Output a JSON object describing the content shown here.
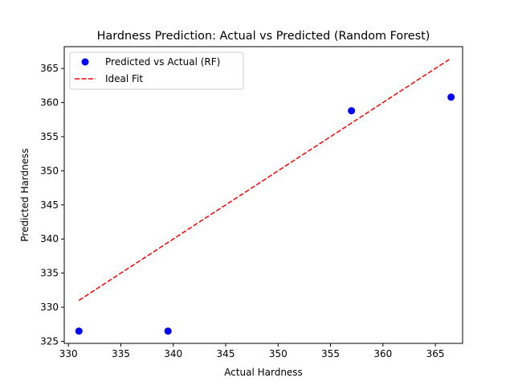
{
  "chart_data": {
    "type": "scatter",
    "title": "Hardness Prediction: Actual vs Predicted (Random Forest)",
    "xlabel": "Actual Hardness",
    "ylabel": "Predicted Hardness",
    "xlim": [
      329.6,
      367.6
    ],
    "ylim": [
      324.7,
      368.2
    ],
    "xticks": [
      330,
      335,
      340,
      345,
      350,
      355,
      360,
      365
    ],
    "yticks": [
      325,
      330,
      335,
      340,
      345,
      350,
      355,
      360,
      365
    ],
    "grid": false,
    "legend_position": "top-left",
    "series": [
      {
        "name": "Predicted vs Actual (RF)",
        "kind": "scatter",
        "color": "#0000ff",
        "points": [
          {
            "x": 331.0,
            "y": 326.5
          },
          {
            "x": 339.5,
            "y": 326.5
          },
          {
            "x": 357.0,
            "y": 358.8
          },
          {
            "x": 366.5,
            "y": 360.8
          }
        ]
      },
      {
        "name": "Ideal Fit",
        "kind": "line",
        "style": "dashed",
        "color": "#ff0000",
        "points": [
          {
            "x": 331.0,
            "y": 331.0
          },
          {
            "x": 366.5,
            "y": 366.5
          }
        ]
      }
    ]
  }
}
